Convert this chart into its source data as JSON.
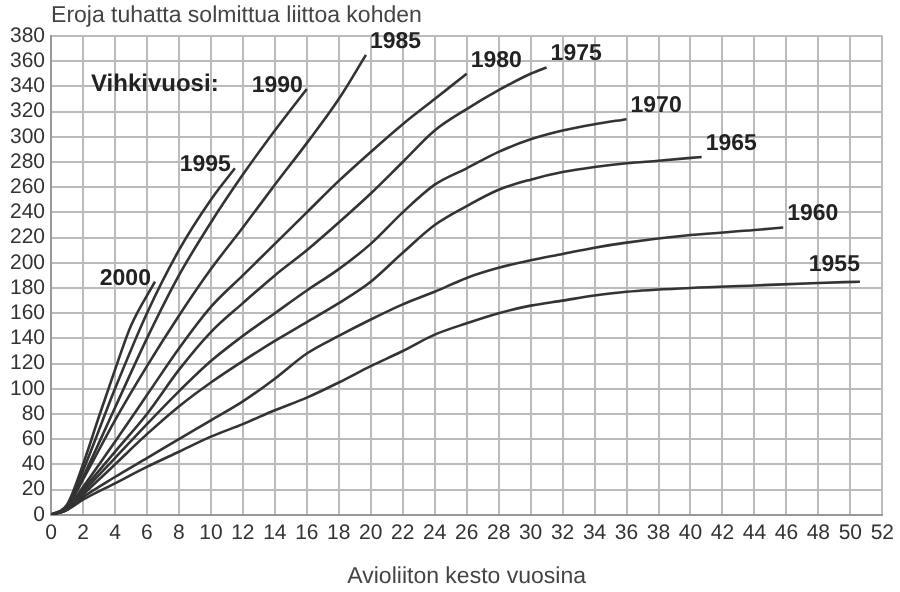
{
  "chart_data": {
    "type": "line",
    "ylabel": "Eroja tuhatta solmittua liittoa kohden",
    "xlabel": "Avioliiton kesto vuosina",
    "legend_title": "Vihkivuosi:",
    "xlim": [
      0,
      52
    ],
    "xticks": [
      0,
      2,
      4,
      6,
      8,
      10,
      12,
      14,
      16,
      18,
      20,
      22,
      24,
      26,
      28,
      30,
      32,
      34,
      36,
      38,
      40,
      42,
      44,
      46,
      48,
      50,
      52
    ],
    "ylim": [
      0,
      380
    ],
    "yticks": [
      0,
      20,
      40,
      60,
      80,
      100,
      120,
      140,
      160,
      180,
      200,
      220,
      240,
      260,
      280,
      300,
      320,
      340,
      360,
      380
    ],
    "grid": true,
    "legend": false,
    "marker": "none",
    "line_style": "solid",
    "series": [
      {
        "name": "2000",
        "color": "#333333",
        "x": [
          0,
          1,
          2,
          3,
          4,
          5,
          6.5
        ],
        "values": [
          0,
          8,
          40,
          78,
          115,
          150,
          185
        ]
      },
      {
        "name": "1995",
        "color": "#333333",
        "x": [
          0,
          1,
          2,
          4,
          6,
          8,
          10,
          11.5
        ],
        "values": [
          0,
          7,
          35,
          100,
          160,
          210,
          250,
          275
        ]
      },
      {
        "name": "1990",
        "color": "#333333",
        "x": [
          0,
          1,
          2,
          4,
          6,
          8,
          10,
          12,
          14,
          16
        ],
        "values": [
          0,
          6,
          30,
          85,
          140,
          190,
          232,
          270,
          305,
          338
        ]
      },
      {
        "name": "1985",
        "color": "#333333",
        "x": [
          0,
          1,
          2,
          4,
          6,
          8,
          10,
          12,
          14,
          16,
          18,
          19.7
        ],
        "values": [
          0,
          6,
          28,
          75,
          118,
          158,
          195,
          228,
          262,
          295,
          330,
          365
        ]
      },
      {
        "name": "1980",
        "color": "#333333",
        "x": [
          0,
          1,
          2,
          4,
          6,
          8,
          10,
          12,
          14,
          16,
          18,
          20,
          22,
          24,
          26
        ],
        "values": [
          0,
          5,
          22,
          58,
          95,
          132,
          165,
          190,
          215,
          240,
          265,
          288,
          310,
          330,
          350
        ]
      },
      {
        "name": "1975",
        "color": "#333333",
        "x": [
          0,
          1,
          2,
          4,
          6,
          8,
          10,
          12,
          14,
          16,
          18,
          20,
          22,
          24,
          26,
          28,
          30,
          31
        ],
        "values": [
          0,
          5,
          20,
          50,
          80,
          115,
          145,
          168,
          190,
          210,
          232,
          255,
          280,
          305,
          322,
          337,
          350,
          355
        ]
      },
      {
        "name": "1970",
        "color": "#333333",
        "x": [
          0,
          1,
          2,
          4,
          6,
          8,
          10,
          12,
          14,
          16,
          18,
          20,
          22,
          24,
          26,
          28,
          30,
          32,
          34,
          36
        ],
        "values": [
          0,
          4,
          18,
          45,
          72,
          98,
          122,
          142,
          160,
          178,
          195,
          215,
          240,
          262,
          275,
          288,
          298,
          305,
          310,
          314
        ]
      },
      {
        "name": "1965",
        "color": "#333333",
        "x": [
          0,
          1,
          2,
          4,
          6,
          8,
          10,
          12,
          14,
          16,
          18,
          20,
          22,
          24,
          26,
          28,
          30,
          32,
          34,
          36,
          38,
          40.7
        ],
        "values": [
          0,
          4,
          16,
          40,
          64,
          86,
          105,
          122,
          138,
          153,
          168,
          185,
          208,
          230,
          245,
          258,
          266,
          272,
          276,
          279,
          281,
          284
        ]
      },
      {
        "name": "1960",
        "color": "#333333",
        "x": [
          0,
          1,
          2,
          4,
          6,
          8,
          10,
          12,
          14,
          16,
          18,
          20,
          22,
          24,
          26,
          28,
          30,
          32,
          34,
          36,
          40,
          44,
          45.8
        ],
        "values": [
          0,
          4,
          14,
          30,
          45,
          60,
          75,
          90,
          108,
          128,
          142,
          155,
          167,
          177,
          188,
          196,
          202,
          207,
          212,
          216,
          222,
          226,
          228
        ]
      },
      {
        "name": "1955",
        "color": "#333333",
        "x": [
          0,
          1,
          2,
          4,
          6,
          8,
          10,
          12,
          14,
          16,
          18,
          20,
          22,
          24,
          26,
          28,
          30,
          32,
          34,
          36,
          40,
          44,
          48,
          50.6
        ],
        "values": [
          0,
          4,
          12,
          25,
          38,
          50,
          62,
          72,
          83,
          93,
          105,
          118,
          130,
          143,
          152,
          160,
          166,
          170,
          174,
          177,
          180,
          182,
          184,
          185
        ]
      }
    ]
  }
}
